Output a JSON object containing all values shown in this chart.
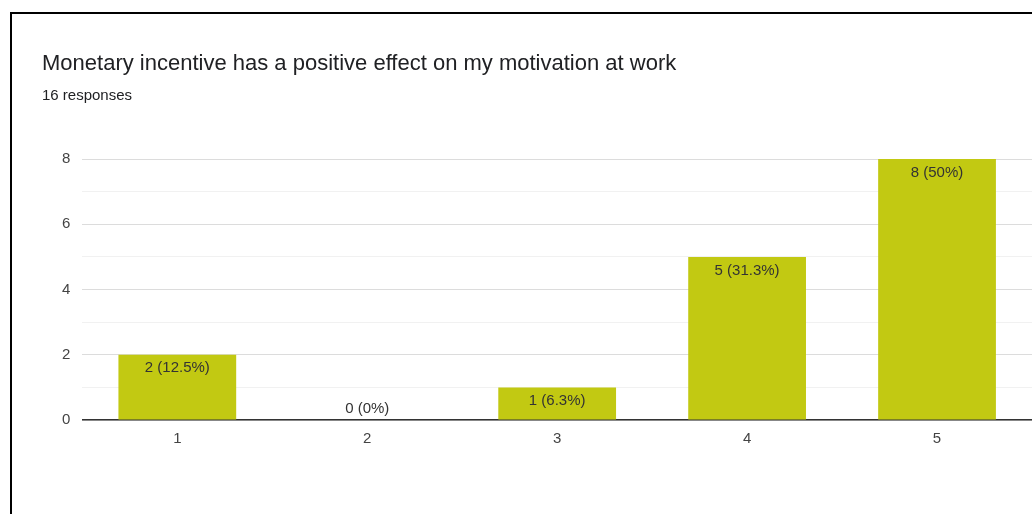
{
  "chart_data": {
    "type": "bar",
    "title": "Monetary incentive has a positive effect on my motivation at work",
    "subtitle": "16 responses",
    "categories": [
      "1",
      "2",
      "3",
      "4",
      "5"
    ],
    "values": [
      2,
      0,
      1,
      5,
      8
    ],
    "value_labels": [
      "2 (12.5%)",
      "0 (0%)",
      "1 (6.3%)",
      "5 (31.3%)",
      "8 (50%)"
    ],
    "color": "#c2c912",
    "ylim": [
      0,
      8
    ],
    "yticks": [
      0,
      {
        "value": 1,
        "label": null
      },
      2,
      {
        "value": 3,
        "label": null
      },
      4,
      {
        "value": 5,
        "label": null
      },
      6,
      {
        "value": 7,
        "label": null
      },
      8
    ],
    "grid": "y",
    "legend": false
  }
}
